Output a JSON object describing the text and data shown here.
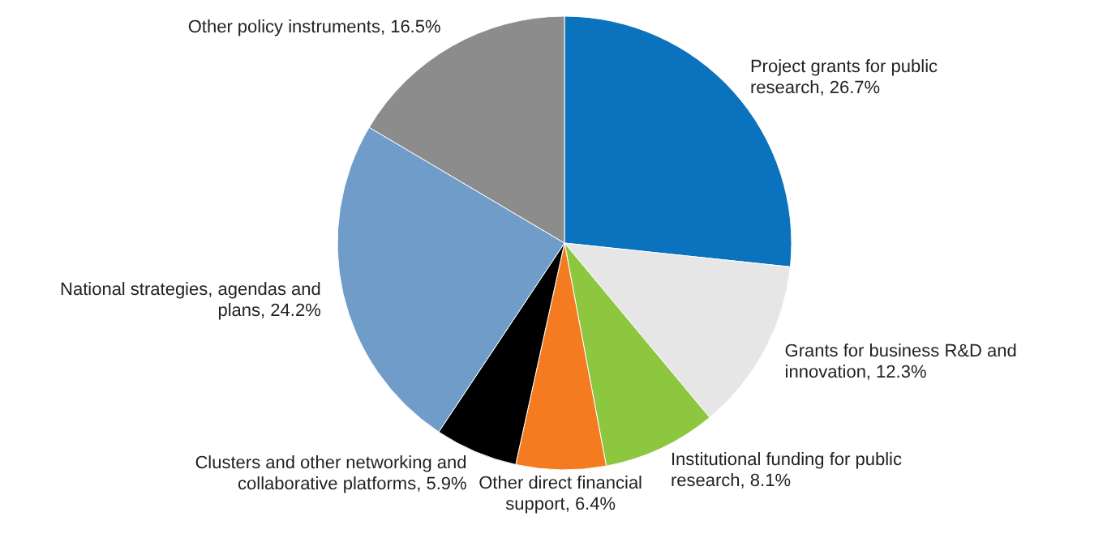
{
  "chart_data": {
    "type": "pie",
    "categories": [
      "Project grants for public research",
      "Grants for business R&D and innovation",
      "Institutional funding for public research",
      "Other direct financial support",
      "Clusters and other networking and collaborative platforms",
      "National strategies, agendas and plans",
      "Other policy instruments"
    ],
    "values": [
      26.7,
      12.3,
      8.1,
      6.4,
      5.9,
      24.2,
      16.5
    ],
    "value_labels": [
      "26.7%",
      "12.3%",
      "8.1%",
      "6.4%",
      "5.9%",
      "24.2%",
      "16.5%"
    ],
    "colors": [
      "#0b72bd",
      "#e6e6e6",
      "#8dc63f",
      "#f47b20",
      "#000000",
      "#6f9cc8",
      "#8c8c8c"
    ]
  }
}
